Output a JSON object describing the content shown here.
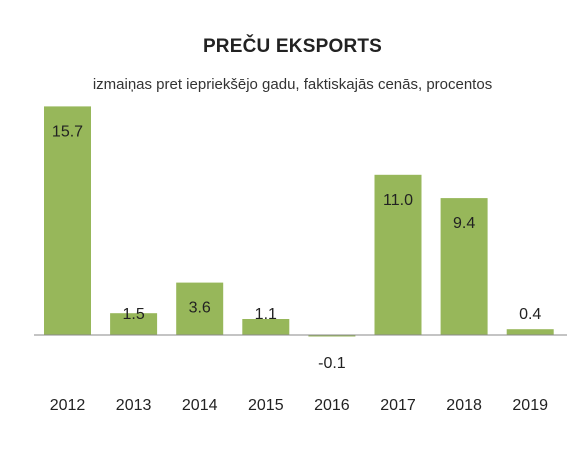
{
  "chart_data": {
    "type": "bar",
    "title": "PREČU EKSPORTS",
    "subtitle": "izmaiņas pret iepriekšējo gadu, faktiskajās cenās, procentos",
    "categories": [
      "2012",
      "2013",
      "2014",
      "2015",
      "2016",
      "2017",
      "2018",
      "2019"
    ],
    "values": [
      15.7,
      1.5,
      3.6,
      1.1,
      -0.1,
      11.0,
      9.4,
      0.4
    ],
    "value_labels": [
      "15.7",
      "1.5",
      "3.6",
      "1.1",
      "-0.1",
      "11.0",
      "9.4",
      "0.4"
    ],
    "xlabel": "",
    "ylabel": "",
    "ylim": [
      -0.2,
      16
    ],
    "grid": false,
    "legend": "none",
    "bar_color": "#97b75a",
    "axis_color": "#8a8a8a"
  }
}
